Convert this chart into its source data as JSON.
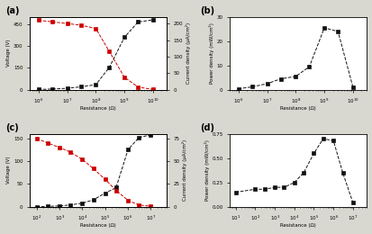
{
  "panel_a": {
    "label": "(a)",
    "resistance": [
      1000000.0,
      3000000.0,
      10000000.0,
      30000000.0,
      100000000.0,
      300000000.0,
      1000000000.0,
      3000000000.0,
      10000000000.0
    ],
    "voltage": [
      2,
      5,
      10,
      20,
      35,
      155,
      360,
      465,
      480
    ],
    "current": [
      210,
      205,
      200,
      195,
      185,
      115,
      38,
      8,
      1
    ],
    "voltage_color": "#111111",
    "current_color": "#cc0000",
    "ylabel_left": "Voltage (V)",
    "ylabel_right": "Current density (μA/cm²)",
    "xlabel": "Resistance (Ω)",
    "xlim": [
      500000.0,
      30000000000.0
    ],
    "ylim_left": [
      0,
      500
    ],
    "ylim_right": [
      0,
      220
    ],
    "yticks_left": [
      0,
      150,
      300,
      450
    ],
    "yticks_right": [
      0,
      50,
      100,
      150,
      200
    ]
  },
  "panel_b": {
    "label": "(b)",
    "resistance": [
      1000000.0,
      3000000.0,
      10000000.0,
      30000000.0,
      100000000.0,
      300000000.0,
      1000000000.0,
      3000000000.0,
      10000000000.0
    ],
    "power": [
      0.4,
      1.2,
      2.5,
      4.5,
      5.5,
      9.5,
      25.5,
      24.0,
      1.0
    ],
    "power_color": "#111111",
    "ylabel": "Power density (mW/cm²)",
    "xlabel": "Resistance (Ω)",
    "xlim": [
      500000.0,
      30000000000.0
    ],
    "ylim": [
      0,
      30
    ],
    "yticks": [
      0,
      10,
      20,
      30
    ]
  },
  "panel_c": {
    "label": "(c)",
    "resistance": [
      100.0,
      300.0,
      1000.0,
      3000.0,
      10000.0,
      30000.0,
      100000.0,
      300000.0,
      1000000.0,
      3000000.0,
      10000000.0
    ],
    "voltage": [
      0.3,
      0.8,
      1.8,
      4.0,
      8.0,
      15.0,
      30.0,
      42.0,
      125.0,
      152.0,
      158.0
    ],
    "current": [
      75,
      70,
      65,
      60,
      52,
      42,
      30,
      18,
      7,
      2,
      0.5
    ],
    "voltage_color": "#111111",
    "current_color": "#cc0000",
    "ylabel_left": "Voltage (V)",
    "ylabel_right": "Current density (μA/cm²)",
    "xlabel": "Resistance (Ω)",
    "xlim": [
      50.0,
      50000000.0
    ],
    "ylim_left": [
      0,
      160
    ],
    "ylim_right": [
      0,
      80
    ],
    "yticks_left": [
      0,
      50,
      100,
      150
    ],
    "yticks_right": [
      0,
      25,
      50,
      75
    ]
  },
  "panel_d": {
    "label": "(d)",
    "resistance": [
      10.0,
      100.0,
      300.0,
      1000.0,
      3000.0,
      10000.0,
      30000.0,
      100000.0,
      300000.0,
      1000000.0,
      3000000.0,
      10000000.0
    ],
    "power": [
      0.15,
      0.18,
      0.18,
      0.2,
      0.2,
      0.25,
      0.35,
      0.55,
      0.7,
      0.68,
      0.35,
      0.04
    ],
    "power_color": "#111111",
    "ylabel": "Power density (mW/cm²)",
    "xlabel": "Resistance (Ω)",
    "xlim": [
      5.0,
      50000000.0
    ],
    "ylim": [
      0,
      0.75
    ],
    "yticks": [
      0.0,
      0.25,
      0.5,
      0.75
    ]
  },
  "fig_bg": "#d8d8d0",
  "plot_bg": "#ffffff"
}
